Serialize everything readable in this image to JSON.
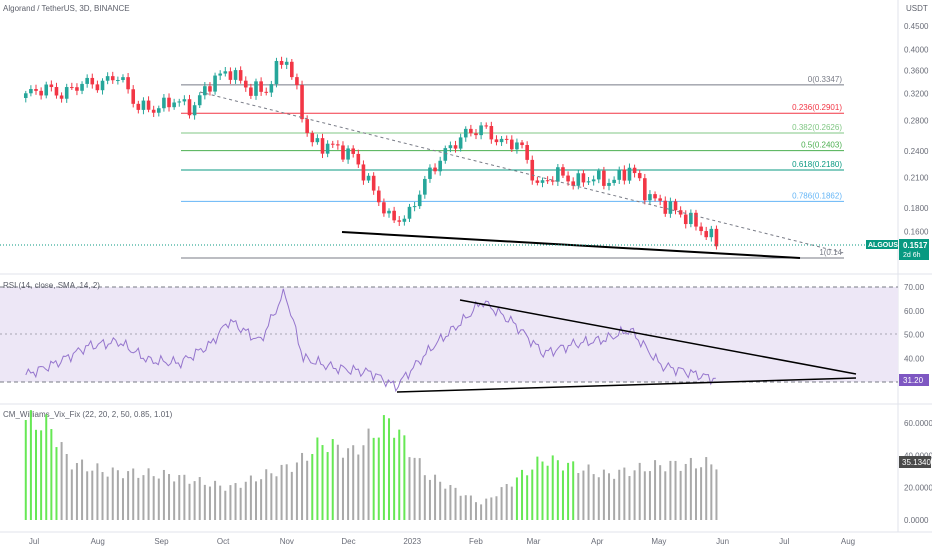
{
  "header": {
    "title": "Algorand / TetherUS, 3D, BINANCE",
    "currency": "USDT"
  },
  "colors": {
    "up": "#26a69a",
    "down": "#f23645",
    "rsi_line": "#9575cd",
    "rsi_band": "#ede7f6",
    "vix_green": "#66e854",
    "vix_gray": "#a9a9a9",
    "price_badge": "#089981",
    "rsi_badge": "#7e57c2",
    "value_badge": "#4a4a4a"
  },
  "price_pane": {
    "axis_ticks": [
      "0.4500",
      "0.4000",
      "0.3600",
      "0.3200",
      "0.2800",
      "0.2400",
      "0.2100",
      "0.1800",
      "0.1600"
    ],
    "fib_levels": [
      {
        "label": "0(0.3347)",
        "value": 0.3347,
        "color": "#787b86"
      },
      {
        "label": "0.236(0.2901)",
        "value": 0.2901,
        "color": "#f23645"
      },
      {
        "label": "0.382(0.2626)",
        "value": 0.2626,
        "color": "#81c784"
      },
      {
        "label": "0.5(0.2403)",
        "value": 0.2403,
        "color": "#4caf50"
      },
      {
        "label": "0.618(0.2180)",
        "value": 0.218,
        "color": "#089981"
      },
      {
        "label": "0.786(0.1862)",
        "value": 0.1862,
        "color": "#64b5f6"
      },
      {
        "label": "1(0.14",
        "value": 0.14,
        "color": "#787b86"
      }
    ],
    "symbol_badge": "ALGOUSDT",
    "last_price": "0.1517",
    "countdown": "2d 6h"
  },
  "rsi_pane": {
    "title": "RSI (14, close, SMA, 14, 2)",
    "axis_ticks": [
      "70.00",
      "60.00",
      "50.00",
      "40.00",
      "30.00"
    ],
    "current": "31.20"
  },
  "vix_pane": {
    "title": "CM_Williams_Vix_Fix (22, 20, 2, 50, 0.85, 1.01)",
    "axis_ticks": [
      "60.0000",
      "40.0000",
      "20.0000",
      "0.0000"
    ],
    "current": "35.1340"
  },
  "time_axis": [
    "Jul",
    "Aug",
    "Sep",
    "Oct",
    "Nov",
    "Dec",
    "2023",
    "Feb",
    "Mar",
    "Apr",
    "May",
    "Jun",
    "Jul",
    "Aug"
  ],
  "chart_data": {
    "type": "candlestick",
    "symbol": "ALGOUSDT",
    "interval": "3D",
    "y_scale": "log",
    "ohlc_close_path": [
      {
        "date": "2022-06-27",
        "close": 0.318
      },
      {
        "date": "2022-07-06",
        "close": 0.33
      },
      {
        "date": "2022-07-15",
        "close": 0.318
      },
      {
        "date": "2022-07-24",
        "close": 0.338
      },
      {
        "date": "2022-08-02",
        "close": 0.335
      },
      {
        "date": "2022-08-11",
        "close": 0.352
      },
      {
        "date": "2022-08-20",
        "close": 0.3
      },
      {
        "date": "2022-08-29",
        "close": 0.296
      },
      {
        "date": "2022-09-07",
        "close": 0.31
      },
      {
        "date": "2022-09-16",
        "close": 0.296
      },
      {
        "date": "2022-09-25",
        "close": 0.34
      },
      {
        "date": "2022-10-04",
        "close": 0.36
      },
      {
        "date": "2022-10-13",
        "close": 0.328
      },
      {
        "date": "2022-10-22",
        "close": 0.325
      },
      {
        "date": "2022-10-31",
        "close": 0.39
      },
      {
        "date": "2022-11-06",
        "close": 0.32
      },
      {
        "date": "2022-11-12",
        "close": 0.25
      },
      {
        "date": "2022-11-24",
        "close": 0.245
      },
      {
        "date": "2022-12-03",
        "close": 0.235
      },
      {
        "date": "2022-12-12",
        "close": 0.2
      },
      {
        "date": "2022-12-21",
        "close": 0.17
      },
      {
        "date": "2022-12-30",
        "close": 0.172
      },
      {
        "date": "2023-01-08",
        "close": 0.21
      },
      {
        "date": "2023-01-17",
        "close": 0.238
      },
      {
        "date": "2023-01-26",
        "close": 0.26
      },
      {
        "date": "2023-02-04",
        "close": 0.27
      },
      {
        "date": "2023-02-13",
        "close": 0.25
      },
      {
        "date": "2023-02-22",
        "close": 0.25
      },
      {
        "date": "2023-03-03",
        "close": 0.2
      },
      {
        "date": "2023-03-12",
        "close": 0.215
      },
      {
        "date": "2023-03-21",
        "close": 0.205
      },
      {
        "date": "2023-03-30",
        "close": 0.21
      },
      {
        "date": "2023-04-08",
        "close": 0.205
      },
      {
        "date": "2023-04-17",
        "close": 0.22
      },
      {
        "date": "2023-04-26",
        "close": 0.19
      },
      {
        "date": "2023-05-05",
        "close": 0.182
      },
      {
        "date": "2023-05-14",
        "close": 0.172
      },
      {
        "date": "2023-05-23",
        "close": 0.16
      },
      {
        "date": "2023-05-29",
        "close": 0.1517
      }
    ],
    "rsi_series": [
      {
        "date": "2022-06-27",
        "rsi": 33
      },
      {
        "date": "2022-07-12",
        "rsi": 38
      },
      {
        "date": "2022-07-27",
        "rsi": 45
      },
      {
        "date": "2022-08-11",
        "rsi": 47
      },
      {
        "date": "2022-08-26",
        "rsi": 39
      },
      {
        "date": "2022-09-10",
        "rsi": 38
      },
      {
        "date": "2022-09-25",
        "rsi": 46
      },
      {
        "date": "2022-10-04",
        "rsi": 56
      },
      {
        "date": "2022-10-19",
        "rsi": 47
      },
      {
        "date": "2022-10-31",
        "rsi": 68
      },
      {
        "date": "2022-11-09",
        "rsi": 40
      },
      {
        "date": "2022-11-24",
        "rsi": 36
      },
      {
        "date": "2022-12-12",
        "rsi": 34
      },
      {
        "date": "2022-12-24",
        "rsi": 28
      },
      {
        "date": "2023-01-11",
        "rsi": 45
      },
      {
        "date": "2023-01-26",
        "rsi": 56
      },
      {
        "date": "2023-02-04",
        "rsi": 64
      },
      {
        "date": "2023-02-19",
        "rsi": 55
      },
      {
        "date": "2023-03-06",
        "rsi": 42
      },
      {
        "date": "2023-03-21",
        "rsi": 46
      },
      {
        "date": "2023-04-05",
        "rsi": 48
      },
      {
        "date": "2023-04-17",
        "rsi": 52
      },
      {
        "date": "2023-05-02",
        "rsi": 37
      },
      {
        "date": "2023-05-20",
        "rsi": 33
      },
      {
        "date": "2023-05-29",
        "rsi": 31.2
      }
    ],
    "vix_series": [
      {
        "date": "2022-06-27",
        "vix": 62,
        "highlight": true
      },
      {
        "date": "2022-07-09",
        "vix": 58,
        "highlight": true
      },
      {
        "date": "2022-07-18",
        "vix": 36,
        "highlight": false
      },
      {
        "date": "2022-08-05",
        "vix": 30,
        "highlight": false
      },
      {
        "date": "2022-09-04",
        "vix": 28,
        "highlight": false
      },
      {
        "date": "2022-10-04",
        "vix": 20,
        "highlight": false
      },
      {
        "date": "2022-11-06",
        "vix": 35,
        "highlight": false
      },
      {
        "date": "2022-11-18",
        "vix": 48,
        "highlight": true
      },
      {
        "date": "2022-12-03",
        "vix": 42,
        "highlight": false
      },
      {
        "date": "2022-12-21",
        "vix": 62,
        "highlight": true
      },
      {
        "date": "2023-01-08",
        "vix": 28,
        "highlight": false
      },
      {
        "date": "2023-02-04",
        "vix": 10,
        "highlight": false
      },
      {
        "date": "2023-03-06",
        "vix": 38,
        "highlight": true
      },
      {
        "date": "2023-04-05",
        "vix": 28,
        "highlight": false
      },
      {
        "date": "2023-05-02",
        "vix": 34,
        "highlight": false
      },
      {
        "date": "2023-05-29",
        "vix": 35.134,
        "highlight": false
      }
    ]
  }
}
